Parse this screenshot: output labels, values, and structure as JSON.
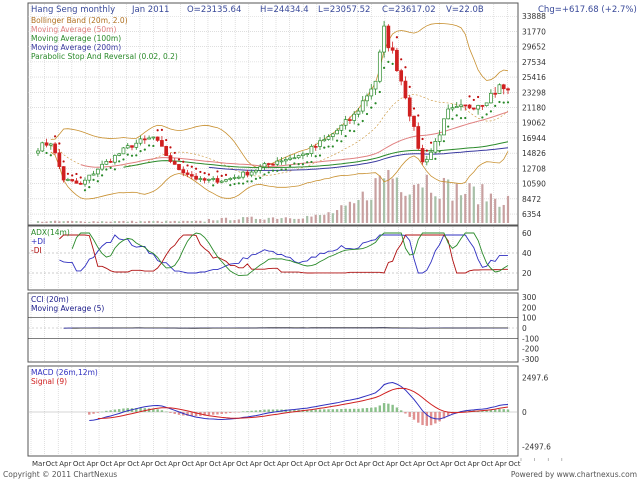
{
  "header": {
    "title": "Hang Seng monthly",
    "date": "Jan 2011",
    "open": "O=23135.64",
    "high": "H=24434.4",
    "low": "L=23057.52",
    "close": "C=23617.02",
    "volume": "V=22.0B",
    "change": "Chg=+617.68 (+2.7%)"
  },
  "footer": {
    "copyright": "Copyright © 2011 ChartNexus",
    "powered": "Powered by www.chartnexus.com"
  },
  "colors": {
    "up": "#2a8a2a",
    "down": "#d02020",
    "bollinger": "#c89030",
    "ma50": "#e08080",
    "ma100": "#2a8a2a",
    "ma200": "#3a3aa0",
    "psar": "#c01010",
    "adx": "#2a8a2a",
    "plus_di": "#3030c0",
    "minus_di": "#b01010",
    "cci": "#1a1a8a",
    "cci_ma": "#3a3a3a",
    "macd": "#3030c0",
    "signal": "#d02020",
    "volume": "#c8a0a0",
    "grid": "#cccccc",
    "title_blue": "#3a4a9a"
  },
  "chart_data": [
    {
      "type": "candlestick",
      "title": "Hang Seng monthly",
      "legend": [
        "Bollinger Band (20m, 2.0)",
        "Moving Average (50m)",
        "Moving Average (100m)",
        "Moving Average (200m)",
        "Parabolic Stop And Reversal (0.02, 0.2)"
      ],
      "y_ticks": [
        "33888",
        "31770",
        "29652",
        "27534",
        "25416",
        "23298",
        "21180",
        "19062",
        "16944",
        "14826",
        "12708",
        "10590",
        "8472",
        "6354"
      ],
      "ylim": [
        5800,
        34200
      ],
      "x_ticks": [
        "Mar",
        "Oct",
        "Apr",
        "Oct",
        "Apr",
        "Oct",
        "Apr",
        "Oct",
        "Apr",
        "Oct",
        "Apr",
        "Oct",
        "Apr",
        "Oct",
        "Apr",
        "Oct",
        "Apr",
        "Oct",
        "Apr",
        "Oct",
        "Apr",
        "Oct",
        "Apr",
        "Oct",
        "Apr",
        "Oct",
        "Apr",
        "Oct",
        "Apr",
        "Oct",
        "Apr",
        "Oct",
        "Apr",
        "Oct",
        "Apr",
        "Oct"
      ],
      "close_anchors": [
        {
          "period": 0,
          "close": 15600
        },
        {
          "period": 3,
          "close": 16400
        },
        {
          "period": 6,
          "close": 11200
        },
        {
          "period": 10,
          "close": 10400
        },
        {
          "period": 14,
          "close": 12700
        },
        {
          "period": 22,
          "close": 16000
        },
        {
          "period": 27,
          "close": 17000
        },
        {
          "period": 32,
          "close": 13000
        },
        {
          "period": 38,
          "close": 11000
        },
        {
          "period": 44,
          "close": 11100
        },
        {
          "period": 50,
          "close": 12300
        },
        {
          "period": 56,
          "close": 13800
        },
        {
          "period": 62,
          "close": 14600
        },
        {
          "period": 68,
          "close": 17000
        },
        {
          "period": 74,
          "close": 20000
        },
        {
          "period": 79,
          "close": 25000
        },
        {
          "period": 81,
          "close": 31800
        },
        {
          "period": 84,
          "close": 27000
        },
        {
          "period": 86,
          "close": 23000
        },
        {
          "period": 88,
          "close": 18000
        },
        {
          "period": 90,
          "close": 13500
        },
        {
          "period": 92,
          "close": 15000
        },
        {
          "period": 96,
          "close": 20500
        },
        {
          "period": 100,
          "close": 21200
        },
        {
          "period": 104,
          "close": 22000
        },
        {
          "period": 108,
          "close": 24000
        },
        {
          "period": 110,
          "close": 23617
        }
      ],
      "volume_profile": [
        {
          "period": 40,
          "volume": 0.6
        },
        {
          "period": 66,
          "volume": 1.2
        },
        {
          "period": 74,
          "volume": 3
        },
        {
          "period": 78,
          "volume": 6
        },
        {
          "period": 82,
          "volume": 9
        },
        {
          "period": 86,
          "volume": 7
        },
        {
          "period": 90,
          "volume": 8
        },
        {
          "period": 96,
          "volume": 6
        },
        {
          "period": 104,
          "volume": 5
        },
        {
          "period": 110,
          "volume": 4
        }
      ]
    },
    {
      "type": "line",
      "title": "ADX(14m)",
      "series": [
        {
          "name": "ADX(14m)"
        },
        {
          "name": "+DI"
        },
        {
          "name": "-DI"
        }
      ],
      "y_ticks": [
        "60",
        "40",
        "20"
      ],
      "ylim": [
        5,
        65
      ]
    },
    {
      "type": "line",
      "title": "CCI (20m)",
      "series": [
        {
          "name": "CCI (20m)"
        },
        {
          "name": "Moving Average (5)"
        }
      ],
      "y_ticks": [
        "300",
        "200",
        "100",
        "0",
        "-100",
        "-200",
        "-300"
      ],
      "ylim": [
        -300,
        300
      ],
      "reference_lines": [
        100,
        -100
      ]
    },
    {
      "type": "line",
      "title": "MACD (26m,12m)",
      "series": [
        {
          "name": "MACD (26m,12m)"
        },
        {
          "name": "Signal (9)"
        }
      ],
      "y_ticks": [
        "2497.6",
        "0",
        "-2497.6"
      ],
      "ylim": [
        -2900,
        2900
      ]
    }
  ]
}
